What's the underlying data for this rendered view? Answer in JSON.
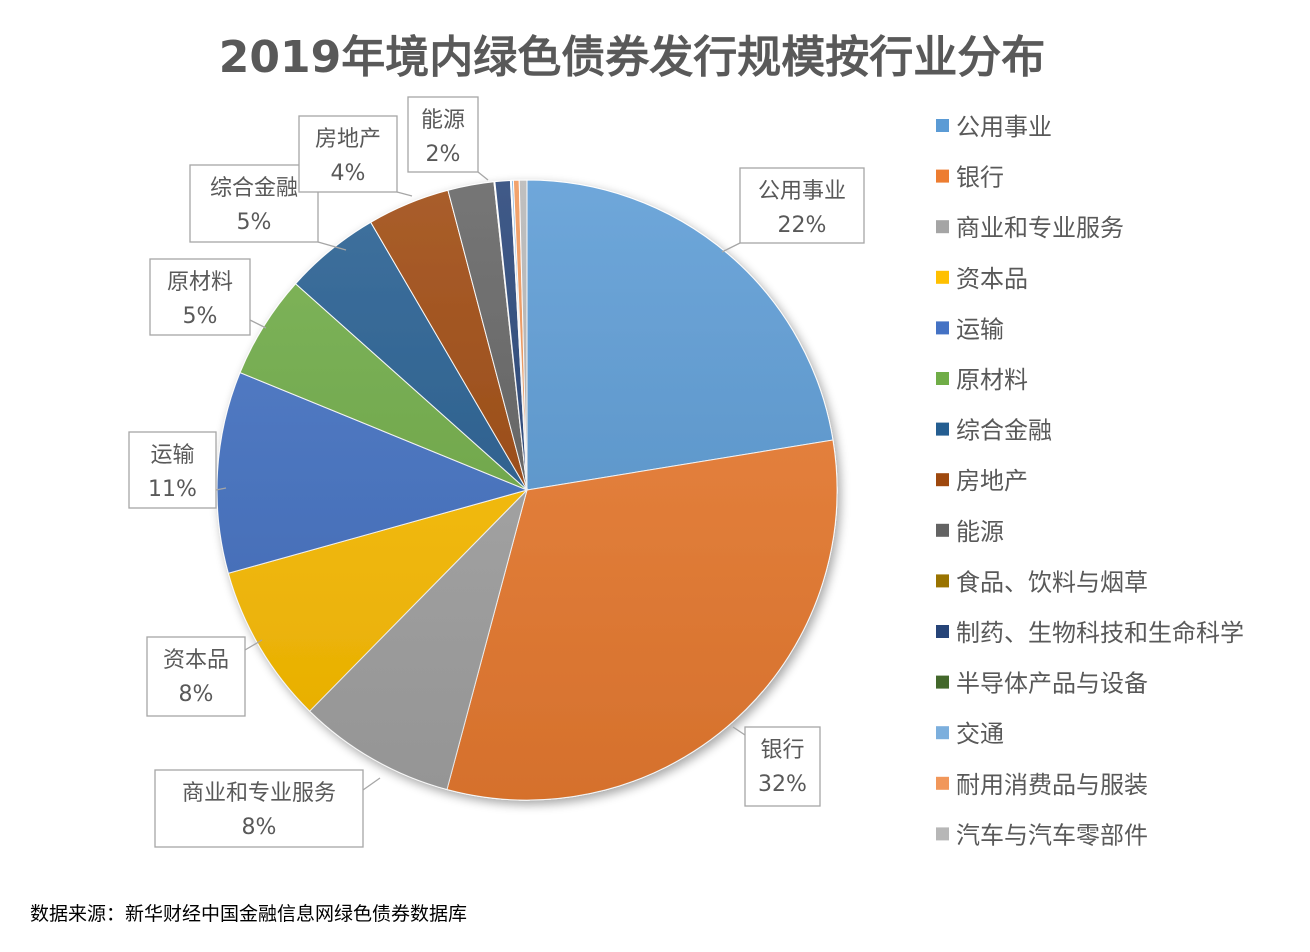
{
  "chart_data": {
    "type": "pie",
    "title": "2019年境内绿色债券发行规模按行业分布",
    "legend_position": "right",
    "start_angle": "12 o'clock, clockwise",
    "slices": [
      {
        "name": "公用事业",
        "value": 22.4,
        "label": "22%",
        "color": "#5B9BD5"
      },
      {
        "name": "银行",
        "value": 31.7,
        "label": "32%",
        "color": "#ED7D31"
      },
      {
        "name": "商业和专业服务",
        "value": 8.2,
        "label": "8%",
        "color": "#A5A5A5"
      },
      {
        "name": "资本品",
        "value": 8.3,
        "label": "8%",
        "color": "#FFC000"
      },
      {
        "name": "运输",
        "value": 10.5,
        "label": "11%",
        "color": "#4472C4"
      },
      {
        "name": "原材料",
        "value": 5.4,
        "label": "5%",
        "color": "#70AD47"
      },
      {
        "name": "综合金融",
        "value": 5.0,
        "label": "5%",
        "color": "#255E91"
      },
      {
        "name": "房地产",
        "value": 4.3,
        "label": "4%",
        "color": "#9E480E"
      },
      {
        "name": "能源",
        "value": 2.4,
        "label": "2%",
        "color": "#636363"
      },
      {
        "name": "食品、饮料与烟草",
        "value": 0.05,
        "label": null,
        "color": "#997300"
      },
      {
        "name": "制药、生物科技和生命科学",
        "value": 0.8,
        "label": null,
        "color": "#264478"
      },
      {
        "name": "半导体产品与设备",
        "value": 0.05,
        "label": null,
        "color": "#43682B"
      },
      {
        "name": "交通",
        "value": 0.1,
        "label": null,
        "color": "#7CAFDD"
      },
      {
        "name": "耐用消费品与服装",
        "value": 0.3,
        "label": null,
        "color": "#F1975A"
      },
      {
        "name": "汽车与汽车零部件",
        "value": 0.4,
        "label": null,
        "color": "#B7B7B7"
      }
    ]
  },
  "source_note": "数据来源：新华财经中国金融信息网绿色债券数据库"
}
